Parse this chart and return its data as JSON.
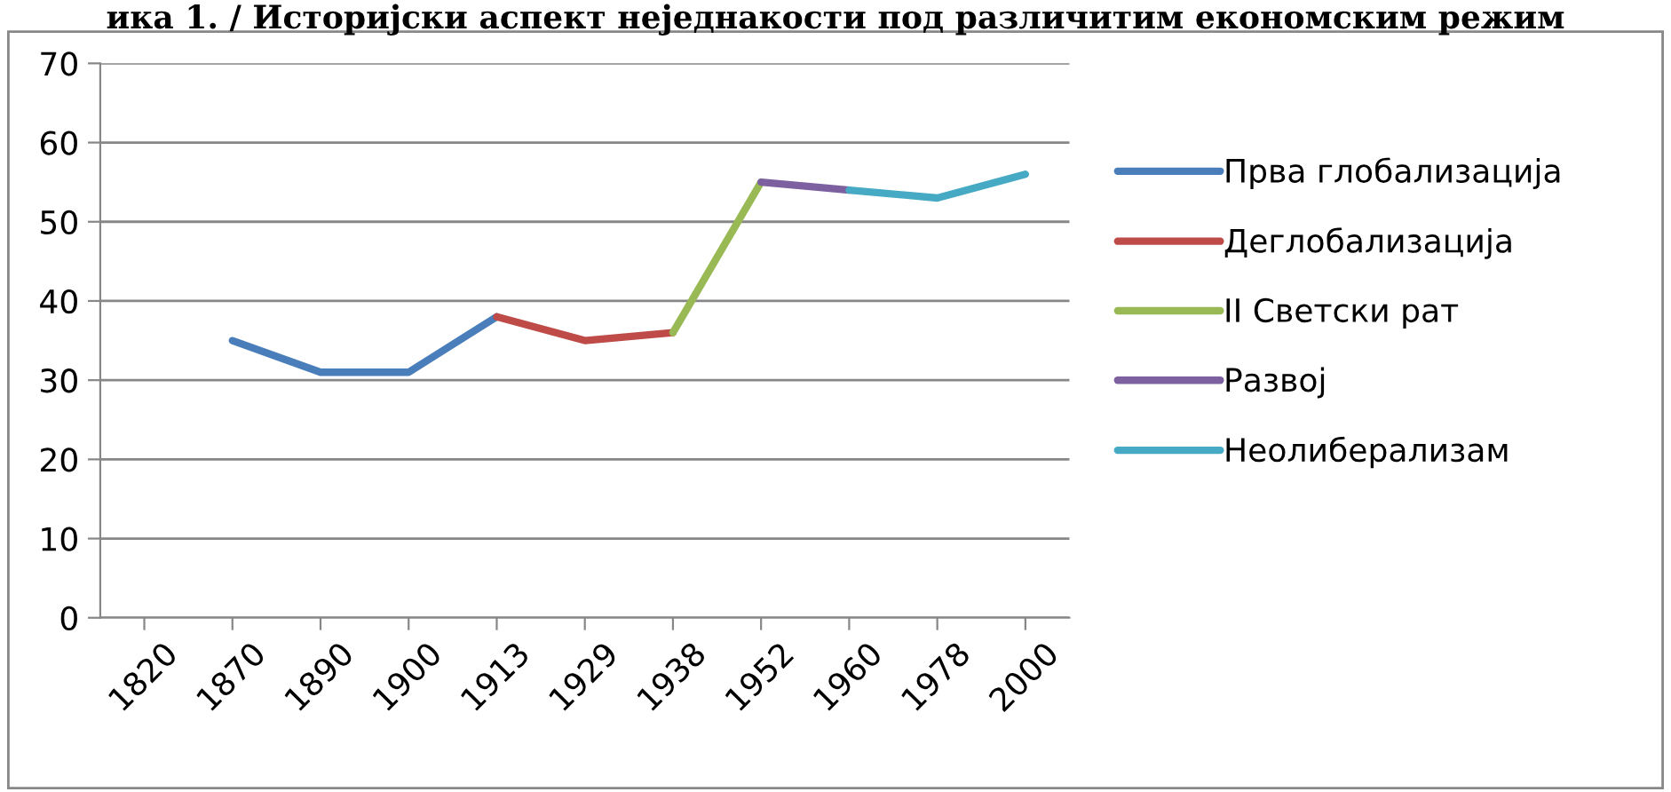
{
  "chart_data": {
    "type": "line",
    "title": "ика 1. / Историјски аспект неједнакости под различитим економским режим",
    "categories": [
      "1820",
      "1870",
      "1890",
      "1900",
      "1913",
      "1929",
      "1938",
      "1952",
      "1960",
      "1978",
      "2000"
    ],
    "series": [
      {
        "name": "Прва глобализација",
        "color": "#4a7ebb",
        "values": [
          null,
          35,
          31,
          31,
          38,
          null,
          null,
          null,
          null,
          null,
          null
        ]
      },
      {
        "name": "Деглобализација",
        "color": "#be4b48",
        "values": [
          null,
          null,
          null,
          null,
          38,
          35,
          36,
          null,
          null,
          null,
          null
        ]
      },
      {
        "name": "II Светски рат",
        "color": "#98b954",
        "values": [
          null,
          null,
          null,
          null,
          null,
          null,
          36,
          55,
          null,
          null,
          null
        ]
      },
      {
        "name": "Развој",
        "color": "#7d60a0",
        "values": [
          null,
          null,
          null,
          null,
          null,
          null,
          null,
          55,
          54,
          null,
          null
        ]
      },
      {
        "name": "Неолиберализам",
        "color": "#46aac5",
        "values": [
          null,
          null,
          null,
          null,
          null,
          null,
          null,
          null,
          54,
          53,
          56
        ]
      }
    ],
    "ylim": [
      0,
      70
    ],
    "yticks": [
      0,
      10,
      20,
      30,
      40,
      50,
      60,
      70
    ],
    "grid": "y",
    "legend": "right",
    "marker": "none",
    "line_style": "solid"
  }
}
